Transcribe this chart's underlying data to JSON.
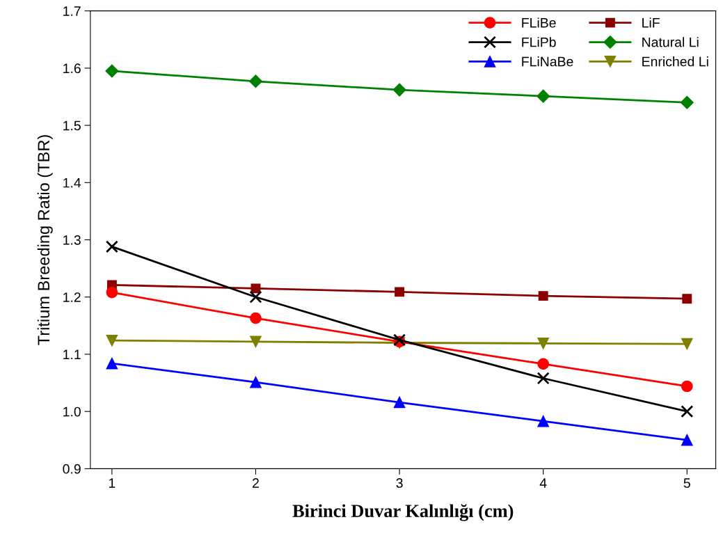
{
  "chart_data": {
    "type": "line",
    "xlabel": "Birinci Duvar Kalınlığı (cm)",
    "ylabel": "Tritium Breeding Ratio (TBR)",
    "x": [
      1,
      2,
      3,
      4,
      5
    ],
    "xlim": [
      0.85,
      5.2
    ],
    "xticks": [
      1,
      2,
      3,
      4,
      5
    ],
    "ylim": [
      0.9,
      1.7
    ],
    "yticks": [
      {
        "value": 0.9,
        "label": "0.9"
      },
      {
        "value": 1.0,
        "label": "1.0"
      },
      {
        "value": 1.1,
        "label": "1.1"
      },
      {
        "value": 1.2,
        "label": "1.2"
      },
      {
        "value": 1.3,
        "label": "1.3"
      },
      {
        "value": 1.4,
        "label": "1.4"
      },
      {
        "value": 1.5,
        "label": "1.5"
      },
      {
        "value": 1.6,
        "label": "1.6"
      },
      {
        "value": 1.7,
        "label": "1.7"
      }
    ],
    "grid": false,
    "legend": "top right",
    "line_style": "solid",
    "series": [
      {
        "name": "FLiBe",
        "color": "#ff0000",
        "marker": "circle",
        "values": [
          1.208,
          1.163,
          1.122,
          1.083,
          1.044
        ]
      },
      {
        "name": "FLiPb",
        "color": "#000000",
        "marker": "cross",
        "values": [
          1.288,
          1.2,
          1.125,
          1.058,
          1.0
        ]
      },
      {
        "name": "FLiNaBe",
        "color": "#0000ff",
        "marker": "triangle",
        "values": [
          1.084,
          1.051,
          1.016,
          0.983,
          0.95
        ]
      },
      {
        "name": "LiF",
        "color": "#8b0000",
        "marker": "square",
        "values": [
          1.221,
          1.215,
          1.209,
          1.202,
          1.197
        ]
      },
      {
        "name": "Natural Li",
        "color": "#008000",
        "marker": "diamond",
        "values": [
          1.595,
          1.577,
          1.562,
          1.551,
          1.54
        ]
      },
      {
        "name": "Enriched Li",
        "color": "#808000",
        "marker": "triangle_down",
        "values": [
          1.124,
          1.122,
          1.12,
          1.119,
          1.118
        ]
      }
    ]
  }
}
